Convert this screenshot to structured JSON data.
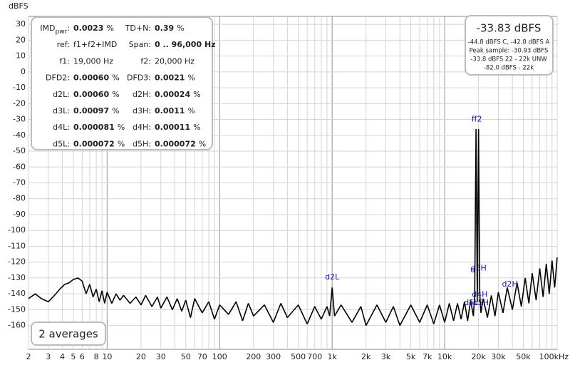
{
  "chart_data": {
    "type": "line",
    "y_label": "dBFS",
    "xlog": true,
    "xlim": [
      2,
      100000
    ],
    "ylim": [
      -175,
      35
    ],
    "yticks": [
      30,
      20,
      10,
      0,
      -10,
      -20,
      -30,
      -40,
      -50,
      -60,
      -70,
      -80,
      -90,
      -100,
      -110,
      -120,
      -130,
      -140,
      -150,
      -160
    ],
    "xticks": [
      2,
      3,
      4,
      5,
      6,
      8,
      10,
      20,
      30,
      50,
      70,
      100,
      200,
      300,
      500,
      700,
      {
        "value": 1000,
        "label": "1k"
      },
      {
        "value": 2000,
        "label": "2k"
      },
      {
        "value": 3000,
        "label": "3k"
      },
      {
        "value": 5000,
        "label": "5k"
      },
      {
        "value": 7000,
        "label": "7k"
      },
      {
        "value": 10000,
        "label": "10k"
      },
      {
        "value": 20000,
        "label": "20k"
      },
      {
        "value": 30000,
        "label": "30k"
      },
      {
        "value": 50000,
        "label": "50k"
      },
      {
        "value": 100000,
        "label": "100kHz"
      }
    ],
    "xminor": [
      2,
      3,
      4,
      5,
      6,
      7,
      8,
      9,
      10,
      20,
      30,
      40,
      50,
      60,
      70,
      80,
      90,
      100,
      200,
      300,
      400,
      500,
      600,
      700,
      800,
      900,
      1000,
      2000,
      3000,
      4000,
      5000,
      6000,
      7000,
      8000,
      9000,
      10000,
      20000,
      30000,
      40000,
      50000,
      60000,
      70000,
      80000,
      90000,
      100000
    ],
    "xmajor": [
      10,
      100,
      1000,
      10000
    ],
    "grid": true,
    "series": [
      {
        "name": "spectrum",
        "color": "#000000",
        "x": [
          2,
          2.3,
          2.6,
          3,
          3.4,
          3.8,
          4.2,
          4.6,
          5,
          5.5,
          6,
          6.5,
          7,
          7.5,
          8,
          8.5,
          9,
          9.5,
          10,
          11,
          12,
          13,
          14,
          16,
          18,
          20,
          22,
          25,
          28,
          30,
          34,
          38,
          42,
          46,
          50,
          55,
          60,
          70,
          80,
          90,
          100,
          120,
          140,
          160,
          180,
          200,
          250,
          300,
          350,
          400,
          500,
          600,
          700,
          800,
          900,
          950,
          1000,
          1050,
          1200,
          1500,
          1800,
          2000,
          2500,
          3000,
          3500,
          4000,
          5000,
          6000,
          7000,
          8000,
          9000,
          10000,
          11000,
          12000,
          13000,
          14000,
          15000,
          16000,
          17000,
          18000,
          18500,
          19000,
          19500,
          20000,
          20500,
          21000,
          22000,
          24000,
          26000,
          28000,
          30000,
          33000,
          36000,
          40000,
          44000,
          48000,
          52000,
          56000,
          60000,
          65000,
          70000,
          75000,
          80000,
          85000,
          90000,
          95000,
          100000
        ],
        "values": [
          -143,
          -140,
          -143,
          -145,
          -141,
          -137,
          -134,
          -133,
          -131,
          -130,
          -132,
          -140,
          -134,
          -142,
          -137,
          -145,
          -138,
          -146,
          -139,
          -146,
          -140,
          -144,
          -141,
          -146,
          -142,
          -147,
          -141,
          -148,
          -142,
          -149,
          -142,
          -150,
          -143,
          -151,
          -144,
          -155,
          -143,
          -152,
          -145,
          -156,
          -147,
          -153,
          -145,
          -157,
          -146,
          -154,
          -147,
          -158,
          -146,
          -155,
          -147,
          -159,
          -148,
          -156,
          -148,
          -154,
          -136,
          -154,
          -147,
          -158,
          -148,
          -160,
          -147,
          -158,
          -148,
          -160,
          -147,
          -158,
          -147,
          -159,
          -147,
          -158,
          -146,
          -157,
          -146,
          -156,
          -145,
          -157,
          -144,
          -154,
          -140,
          -36,
          -145,
          -36,
          -140,
          -152,
          -143,
          -155,
          -141,
          -154,
          -139,
          -152,
          -136,
          -150,
          -133,
          -148,
          -130,
          -146,
          -127,
          -144,
          -124,
          -142,
          -121,
          -140,
          -119,
          -136,
          -117
        ]
      }
    ],
    "annotations": [
      {
        "text": "ff2",
        "x": 19300,
        "y": -30
      },
      {
        "text": "d2L",
        "x": 1000,
        "y": -129.5
      },
      {
        "text": "d",
        "x": 17800,
        "y": -125
      },
      {
        "text": "d3H",
        "x": 20000,
        "y": -124
      },
      {
        "text": "d4H",
        "x": 20500,
        "y": -140.7
      },
      {
        "text": "d5L",
        "x": 17200,
        "y": -145.7
      },
      {
        "text": "d5H",
        "x": 21000,
        "y": -145.7
      },
      {
        "text": "d2H",
        "x": 38000,
        "y": -134
      }
    ]
  },
  "info_panel": {
    "rows": [
      [
        {
          "label": "IMD",
          "sub": "pwr",
          "suffix": ":",
          "value": "0.0023",
          "unit": "%"
        },
        {
          "label": "TD+N:",
          "value": "0.39",
          "unit": "%"
        }
      ],
      [
        {
          "label": "ref:",
          "plain": "f1+f2+IMD"
        },
        {
          "label": "Span:",
          "value": "0 .. 96,000 Hz"
        }
      ],
      [
        {
          "label": "f1:",
          "plain": "19,000 Hz"
        },
        {
          "label": "f2:",
          "plain": "20,000 Hz"
        }
      ],
      [
        {
          "label": "DFD2:",
          "value": "0.00060",
          "unit": "%"
        },
        {
          "label": "DFD3:",
          "value": "0.0021",
          "unit": "%"
        }
      ],
      [
        {
          "label": "d2L:",
          "value": "0.00060",
          "unit": "%"
        },
        {
          "label": "d2H:",
          "value": "0.00024",
          "unit": "%"
        }
      ],
      [
        {
          "label": "d3L:",
          "value": "0.00097",
          "unit": "%"
        },
        {
          "label": "d3H:",
          "value": "0.0011",
          "unit": "%"
        }
      ],
      [
        {
          "label": "d4L:",
          "value": "0.000081",
          "unit": "%"
        },
        {
          "label": "d4H:",
          "value": "0.00011",
          "unit": "%"
        }
      ],
      [
        {
          "label": "d5L:",
          "value": "0.000072",
          "unit": "%"
        },
        {
          "label": "d5H:",
          "value": "0.000072",
          "unit": "%"
        }
      ]
    ]
  },
  "level_box": {
    "main": "-33.83 dBFS",
    "lines": [
      "-44.8 dBFS C, -42.8 dBFS A",
      "Peak sample: -30.93 dBFS",
      "-33.8 dBFS 22 - 22k UNW",
      "-82.0 dBFS - 22k"
    ]
  },
  "averages": "2 averages"
}
